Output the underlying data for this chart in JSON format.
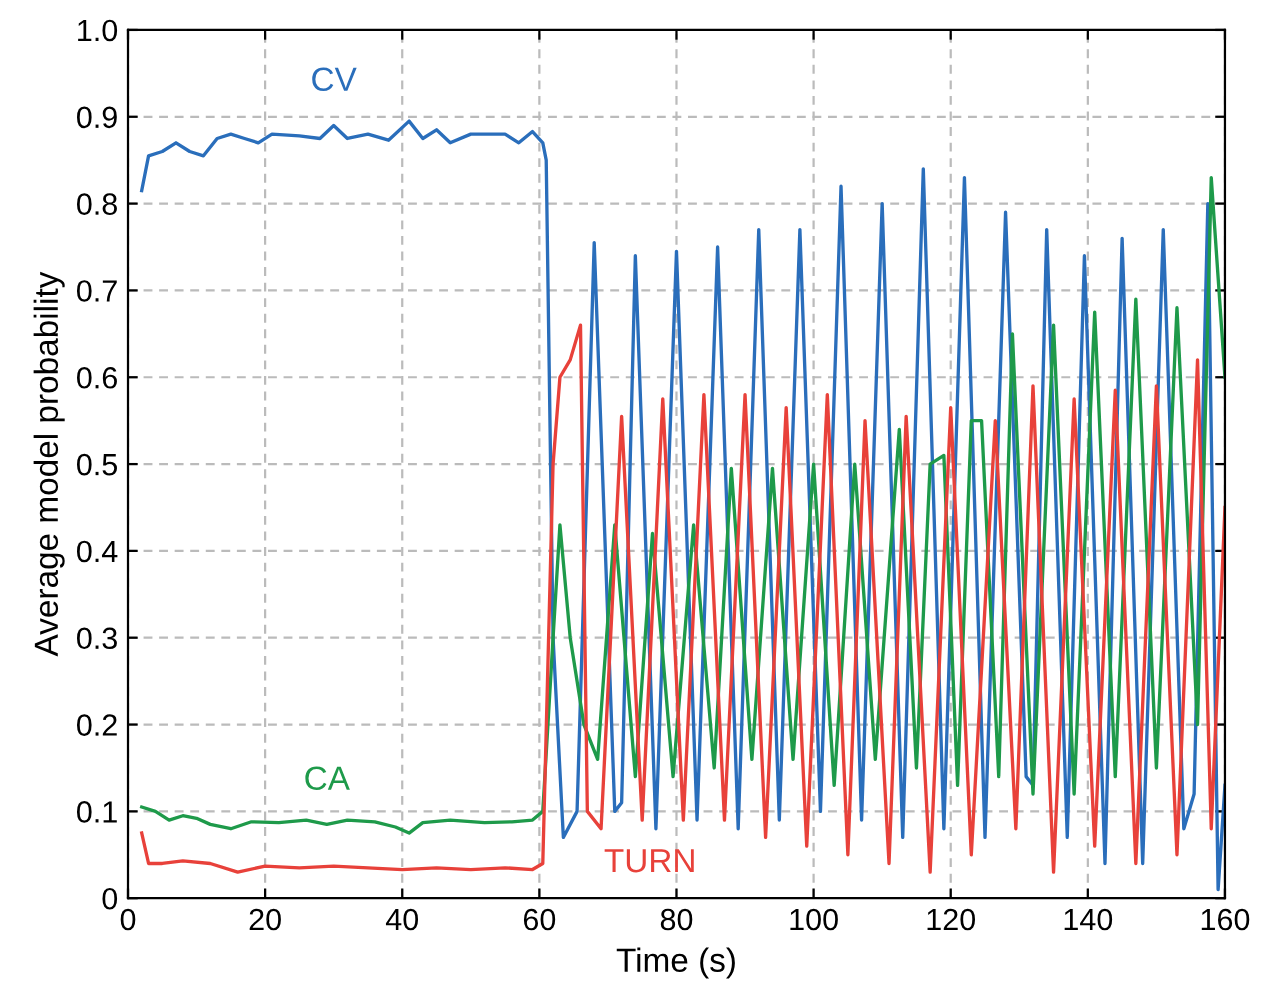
{
  "chart_data": {
    "type": "line",
    "xlabel": "Time (s)",
    "ylabel": "Average model probability",
    "xlim": [
      0,
      160
    ],
    "ylim": [
      0,
      1
    ],
    "xticks": [
      0,
      20,
      40,
      60,
      80,
      100,
      120,
      140,
      160
    ],
    "yticks": [
      0,
      0.1,
      0.2,
      0.3,
      0.4,
      0.5,
      0.6,
      0.7,
      0.8,
      0.9,
      {
        "value": 1,
        "label": "1.0"
      }
    ],
    "grid": true,
    "legend": false,
    "marker": "none",
    "line_style": "solid",
    "series": [
      {
        "name": "CV",
        "color": "#2a6ebb",
        "x": [
          2,
          3,
          5,
          7,
          9,
          11,
          13,
          15,
          17,
          19,
          21,
          25,
          28,
          30,
          32,
          35,
          38,
          41,
          43,
          45,
          47,
          50,
          55,
          57,
          59,
          60.5,
          61,
          62,
          63.5,
          65.5,
          68,
          71,
          72,
          74,
          77,
          80,
          83,
          86,
          89,
          92,
          95,
          98,
          101,
          104,
          107,
          110,
          113,
          116,
          119,
          122,
          125,
          128,
          131,
          132,
          134,
          137,
          139.5,
          142.5,
          145,
          148,
          151,
          154,
          155.5,
          157.5,
          159,
          160
        ],
        "values": [
          0.815,
          0.855,
          0.86,
          0.87,
          0.86,
          0.855,
          0.875,
          0.88,
          0.875,
          0.87,
          0.88,
          0.878,
          0.875,
          0.89,
          0.875,
          0.88,
          0.873,
          0.895,
          0.875,
          0.885,
          0.87,
          0.88,
          0.88,
          0.87,
          0.883,
          0.87,
          0.85,
          0.3,
          0.07,
          0.1,
          0.755,
          0.1,
          0.11,
          0.74,
          0.08,
          0.745,
          0.09,
          0.75,
          0.08,
          0.77,
          0.09,
          0.77,
          0.1,
          0.82,
          0.09,
          0.8,
          0.07,
          0.84,
          0.08,
          0.83,
          0.07,
          0.79,
          0.14,
          0.13,
          0.77,
          0.07,
          0.74,
          0.04,
          0.76,
          0.04,
          0.77,
          0.08,
          0.12,
          0.8,
          0.01,
          0.13
        ]
      },
      {
        "name": "CA",
        "color": "#1e9a4a",
        "x": [
          2,
          4,
          6,
          8,
          10,
          12,
          15,
          18,
          22,
          26,
          29,
          32,
          36,
          39,
          41,
          43,
          47,
          52,
          56,
          59,
          60.5,
          62,
          63,
          64.5,
          66.5,
          68.5,
          71,
          74,
          76.5,
          79.5,
          82.5,
          85.5,
          88,
          91,
          94,
          97,
          100,
          103,
          106,
          109,
          112.5,
          115,
          117,
          119,
          121,
          123,
          124.5,
          127,
          129,
          132,
          135,
          138,
          141,
          144,
          147,
          150,
          153,
          156,
          158,
          160
        ],
        "values": [
          0.105,
          0.1,
          0.09,
          0.095,
          0.092,
          0.085,
          0.08,
          0.088,
          0.087,
          0.09,
          0.085,
          0.09,
          0.088,
          0.082,
          0.075,
          0.087,
          0.09,
          0.087,
          0.088,
          0.09,
          0.1,
          0.3,
          0.43,
          0.3,
          0.2,
          0.16,
          0.43,
          0.14,
          0.42,
          0.14,
          0.43,
          0.15,
          0.495,
          0.16,
          0.495,
          0.16,
          0.5,
          0.13,
          0.5,
          0.16,
          0.54,
          0.15,
          0.5,
          0.51,
          0.13,
          0.55,
          0.55,
          0.14,
          0.65,
          0.12,
          0.66,
          0.12,
          0.675,
          0.14,
          0.69,
          0.15,
          0.68,
          0.2,
          0.83,
          0.6
        ]
      },
      {
        "name": "TURN",
        "color": "#e8413a",
        "x": [
          2,
          3,
          5,
          8,
          12,
          16,
          20,
          25,
          30,
          35,
          40,
          45,
          50,
          55,
          59,
          60.5,
          62,
          63,
          64.5,
          66,
          67,
          69,
          72,
          75,
          78,
          81,
          84,
          87,
          90,
          93,
          96,
          99,
          102,
          105,
          107.5,
          111,
          113.5,
          117,
          120,
          123,
          126.5,
          129.5,
          132,
          135,
          138,
          141,
          144,
          147,
          150,
          153,
          156,
          158,
          160
        ],
        "values": [
          0.075,
          0.04,
          0.04,
          0.043,
          0.04,
          0.03,
          0.037,
          0.035,
          0.037,
          0.035,
          0.033,
          0.035,
          0.033,
          0.035,
          0.033,
          0.04,
          0.5,
          0.6,
          0.62,
          0.66,
          0.1,
          0.08,
          0.555,
          0.09,
          0.575,
          0.09,
          0.58,
          0.09,
          0.58,
          0.07,
          0.565,
          0.06,
          0.58,
          0.05,
          0.55,
          0.04,
          0.555,
          0.03,
          0.565,
          0.05,
          0.55,
          0.08,
          0.59,
          0.03,
          0.575,
          0.06,
          0.585,
          0.04,
          0.59,
          0.05,
          0.62,
          0.08,
          0.45
        ]
      }
    ]
  }
}
